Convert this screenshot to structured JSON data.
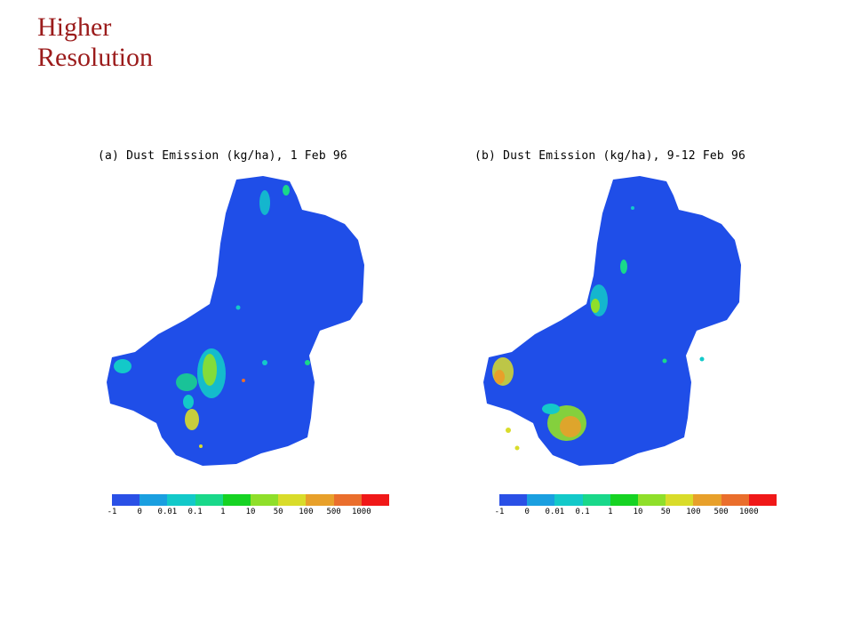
{
  "slide": {
    "title": "Higher Resolution"
  },
  "colors": {
    "title": "#9b1b1b",
    "background_map": "#1f4ee8",
    "scale": [
      "#2a50e6",
      "#1a9fe0",
      "#13c9c9",
      "#19d88a",
      "#16d323",
      "#8fdf2a",
      "#d9dc2a",
      "#e8a02a",
      "#ea6e2c",
      "#f01818"
    ]
  },
  "scale_labels": [
    "-1",
    "0",
    "0.01",
    "0.1",
    "1",
    "10",
    "50",
    "100",
    "500",
    "1000"
  ],
  "panels": [
    {
      "id": "a",
      "title": "(a) Dust Emission (kg/ha), 1 Feb 96"
    },
    {
      "id": "b",
      "title": "(b) Dust Emission (kg/ha), 9-12 Feb 96"
    }
  ]
}
